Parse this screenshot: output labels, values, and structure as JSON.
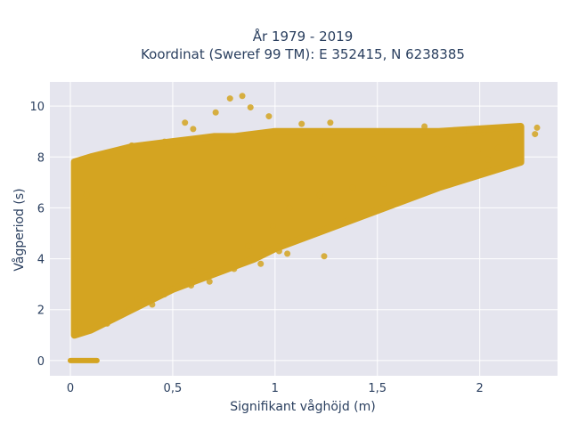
{
  "chart_data": {
    "type": "scatter",
    "title_line1": "År 1979 - 2019",
    "title_line2": "Koordinat (Sweref 99 TM): E 352415, N 6238385",
    "xlabel": "Signifikant våghöjd (m)",
    "ylabel": "Vågperiod (s)",
    "xlim": [
      -0.1,
      2.38
    ],
    "ylim": [
      -0.6,
      10.95
    ],
    "x_ticks": [
      0,
      0.5,
      1,
      1.5,
      2
    ],
    "x_tick_labels": [
      "0",
      "0,5",
      "1",
      "1,5",
      "2"
    ],
    "y_ticks": [
      0,
      2,
      4,
      6,
      8,
      10
    ],
    "y_tick_labels": [
      "0",
      "2",
      "4",
      "6",
      "8",
      "10"
    ],
    "grid": true,
    "marker_color": "#d4a421",
    "plot_bg": "#e5e5ee",
    "density_envelope": {
      "description_x": [
        0.02,
        0.1,
        0.2,
        0.3,
        0.4,
        0.5,
        0.6,
        0.7,
        0.8,
        0.9,
        1.0,
        1.2,
        1.4,
        1.6,
        1.8,
        2.0,
        2.2
      ],
      "lower": [
        1.0,
        1.2,
        1.6,
        2.0,
        2.4,
        2.8,
        3.1,
        3.4,
        3.7,
        4.0,
        4.4,
        5.0,
        5.6,
        6.2,
        6.8,
        7.3,
        7.8
      ],
      "upper": [
        7.8,
        8.0,
        8.2,
        8.4,
        8.5,
        8.6,
        8.7,
        8.8,
        8.8,
        8.9,
        9.0,
        9.0,
        9.0,
        9.0,
        9.0,
        9.1,
        9.2
      ]
    },
    "zero_period_points": {
      "x_range": [
        0.0,
        0.13
      ],
      "y": 0
    },
    "points": [
      [
        0.84,
        10.4
      ],
      [
        0.78,
        10.3
      ],
      [
        0.88,
        9.95
      ],
      [
        0.71,
        9.75
      ],
      [
        0.56,
        9.35
      ],
      [
        0.97,
        9.6
      ],
      [
        1.13,
        9.3
      ],
      [
        1.27,
        9.35
      ],
      [
        1.52,
        9.0
      ],
      [
        1.73,
        9.2
      ],
      [
        1.92,
        9.0
      ],
      [
        2.02,
        8.95
      ],
      [
        2.28,
        9.15
      ],
      [
        2.27,
        8.9
      ],
      [
        2.15,
        8.7
      ],
      [
        2.09,
        8.35
      ],
      [
        1.99,
        8.25
      ],
      [
        2.04,
        7.9
      ],
      [
        1.84,
        8.3
      ],
      [
        1.6,
        7.5
      ],
      [
        1.48,
        7.9
      ],
      [
        1.53,
        6.95
      ],
      [
        1.38,
        6.8
      ],
      [
        1.22,
        6.5
      ],
      [
        1.07,
        6.0
      ],
      [
        0.99,
        5.3
      ],
      [
        1.02,
        4.3
      ],
      [
        0.87,
        4.5
      ],
      [
        0.7,
        4.3
      ],
      [
        0.6,
        3.5
      ],
      [
        0.59,
        2.95
      ],
      [
        0.46,
        2.6
      ],
      [
        0.4,
        2.2
      ],
      [
        0.33,
        2.4
      ],
      [
        0.29,
        1.95
      ],
      [
        1.24,
        4.1
      ],
      [
        1.06,
        4.2
      ],
      [
        0.93,
        3.8
      ],
      [
        0.8,
        3.6
      ],
      [
        0.68,
        3.1
      ],
      [
        0.5,
        2.8
      ],
      [
        0.37,
        2.3
      ],
      [
        0.24,
        1.8
      ],
      [
        0.2,
        1.6
      ],
      [
        0.18,
        1.45
      ],
      [
        0.3,
        8.45
      ],
      [
        0.46,
        8.6
      ],
      [
        0.6,
        9.1
      ],
      [
        0.15,
        8.0
      ],
      [
        0.08,
        6.5
      ],
      [
        0.06,
        5.8
      ],
      [
        0.03,
        4.0
      ],
      [
        0.05,
        3.5
      ],
      [
        0.02,
        1.3
      ],
      [
        0.04,
        1.5
      ]
    ]
  }
}
